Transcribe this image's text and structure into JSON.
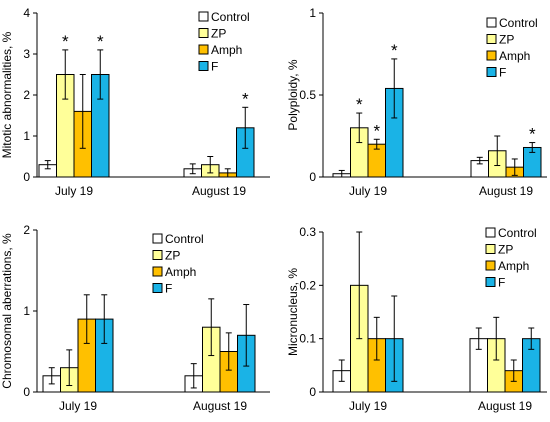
{
  "legend_entries": [
    "Control",
    "ZP",
    "Amph",
    "F"
  ],
  "colors": {
    "Control": "#ffffff",
    "ZP": "#ffff99",
    "Amph": "#ffc000",
    "F": "#1ab3e6",
    "stroke": "#000000"
  },
  "chart_data": [
    {
      "type": "bar",
      "ylabel": "Mitotic abnormalities, %",
      "categories": [
        "July 19",
        "August 19"
      ],
      "ylim": [
        0,
        4
      ],
      "yticks": [
        "0",
        "1",
        "2",
        "3",
        "4"
      ],
      "series": [
        {
          "name": "Control",
          "values": [
            0.3,
            0.2
          ],
          "errors": [
            0.1,
            0.12
          ]
        },
        {
          "name": "ZP",
          "values": [
            2.5,
            0.3
          ],
          "errors": [
            0.6,
            0.2
          ]
        },
        {
          "name": "Amph",
          "values": [
            1.6,
            0.1
          ],
          "errors": [
            0.9,
            0.1
          ]
        },
        {
          "name": "F",
          "values": [
            2.5,
            1.2
          ],
          "errors": [
            0.6,
            0.5
          ]
        }
      ],
      "annotations": [
        {
          "text": "*",
          "category": 0,
          "series": "ZP"
        },
        {
          "text": "*",
          "category": 0,
          "series": "F"
        },
        {
          "text": "*",
          "category": 1,
          "series": "F"
        }
      ],
      "legend": "top-right",
      "grid": false
    },
    {
      "type": "bar",
      "ylabel": "Polyploidy, %",
      "categories": [
        "July 19",
        "August 19"
      ],
      "ylim": [
        0,
        1
      ],
      "yticks": [
        "0",
        "0.5",
        "1"
      ],
      "series": [
        {
          "name": "Control",
          "values": [
            0.02,
            0.1
          ],
          "errors": [
            0.02,
            0.02
          ]
        },
        {
          "name": "ZP",
          "values": [
            0.3,
            0.16
          ],
          "errors": [
            0.09,
            0.09
          ]
        },
        {
          "name": "Amph",
          "values": [
            0.2,
            0.06
          ],
          "errors": [
            0.03,
            0.05
          ]
        },
        {
          "name": "F",
          "values": [
            0.54,
            0.18
          ],
          "errors": [
            0.18,
            0.03
          ]
        }
      ],
      "annotations": [
        {
          "text": "*",
          "category": 0,
          "series": "ZP"
        },
        {
          "text": "*",
          "category": 0,
          "series": "Amph"
        },
        {
          "text": "*",
          "category": 0,
          "series": "F"
        },
        {
          "text": "*",
          "category": 1,
          "series": "F"
        }
      ],
      "legend": "top-right",
      "grid": false
    },
    {
      "type": "bar",
      "ylabel": "Chromosomal aberrations, %",
      "categories": [
        "July 19",
        "August 19"
      ],
      "ylim": [
        0,
        2
      ],
      "yticks": [
        "0",
        "1",
        "2"
      ],
      "series": [
        {
          "name": "Control",
          "values": [
            0.2,
            0.2
          ],
          "errors": [
            0.1,
            0.15
          ]
        },
        {
          "name": "ZP",
          "values": [
            0.3,
            0.8
          ],
          "errors": [
            0.22,
            0.35
          ]
        },
        {
          "name": "Amph",
          "values": [
            0.9,
            0.5
          ],
          "errors": [
            0.3,
            0.23
          ]
        },
        {
          "name": "F",
          "values": [
            0.9,
            0.7
          ],
          "errors": [
            0.3,
            0.38
          ]
        }
      ],
      "annotations": [],
      "legend": "top-right",
      "grid": false
    },
    {
      "type": "bar",
      "ylabel": "Micronucleus, %",
      "categories": [
        "July 19",
        "August 19"
      ],
      "ylim": [
        0,
        0.3
      ],
      "yticks": [
        "0",
        "0.1",
        "0.2",
        "0.3"
      ],
      "series": [
        {
          "name": "Control",
          "values": [
            0.04,
            0.1
          ],
          "errors": [
            0.02,
            0.02
          ]
        },
        {
          "name": "ZP",
          "values": [
            0.2,
            0.1
          ],
          "errors": [
            0.1,
            0.04
          ]
        },
        {
          "name": "Amph",
          "values": [
            0.1,
            0.04
          ],
          "errors": [
            0.04,
            0.02
          ]
        },
        {
          "name": "F",
          "values": [
            0.1,
            0.1
          ],
          "errors": [
            0.08,
            0.02
          ]
        }
      ],
      "annotations": [],
      "legend": "top-right",
      "grid": false
    }
  ]
}
